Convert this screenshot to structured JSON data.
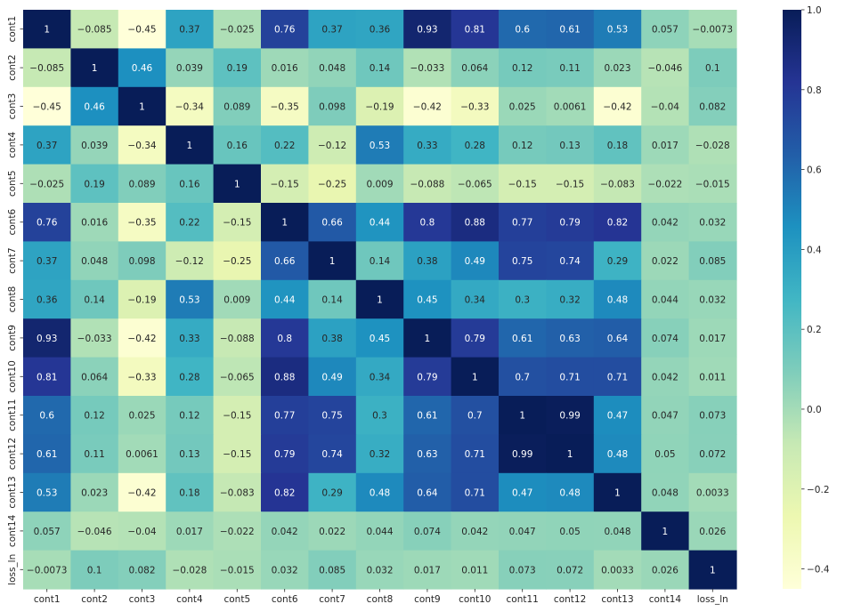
{
  "chart_data": {
    "type": "heatmap",
    "title": "",
    "xlabel": "",
    "ylabel": "",
    "colormap": "YlGnBu",
    "colormap_stops": [
      "#ffffd9",
      "#edf8b1",
      "#c7e9b4",
      "#7fcdbb",
      "#41b6c4",
      "#1d91c0",
      "#225ea8",
      "#253494",
      "#081d58"
    ],
    "vmin": -0.45,
    "vmax": 1.0,
    "columns": [
      "cont1",
      "cont2",
      "cont3",
      "cont4",
      "cont5",
      "cont6",
      "cont7",
      "cont8",
      "cont9",
      "cont10",
      "cont11",
      "cont12",
      "cont13",
      "cont14",
      "loss_ln"
    ],
    "rows": [
      "cont1",
      "cont2",
      "cont3",
      "cont4",
      "cont5",
      "cont6",
      "cont7",
      "cont8",
      "cont9",
      "cont10",
      "cont11",
      "cont12",
      "cont13",
      "cont14",
      "loss_ln"
    ],
    "values": [
      [
        1,
        -0.085,
        -0.45,
        0.37,
        -0.025,
        0.76,
        0.37,
        0.36,
        0.93,
        0.81,
        0.6,
        0.61,
        0.53,
        0.057,
        -0.0073
      ],
      [
        -0.085,
        1,
        0.46,
        0.039,
        0.19,
        0.016,
        0.048,
        0.14,
        -0.033,
        0.064,
        0.12,
        0.11,
        0.023,
        -0.046,
        0.1
      ],
      [
        -0.45,
        0.46,
        1,
        -0.34,
        0.089,
        -0.35,
        0.098,
        -0.19,
        -0.42,
        -0.33,
        0.025,
        0.0061,
        -0.42,
        -0.04,
        0.082
      ],
      [
        0.37,
        0.039,
        -0.34,
        1,
        0.16,
        0.22,
        -0.12,
        0.53,
        0.33,
        0.28,
        0.12,
        0.13,
        0.18,
        0.017,
        -0.028
      ],
      [
        -0.025,
        0.19,
        0.089,
        0.16,
        1,
        -0.15,
        -0.25,
        0.009,
        -0.088,
        -0.065,
        -0.15,
        -0.15,
        -0.083,
        -0.022,
        -0.015
      ],
      [
        0.76,
        0.016,
        -0.35,
        0.22,
        -0.15,
        1,
        0.66,
        0.44,
        0.8,
        0.88,
        0.77,
        0.79,
        0.82,
        0.042,
        0.032
      ],
      [
        0.37,
        0.048,
        0.098,
        -0.12,
        -0.25,
        0.66,
        1,
        0.14,
        0.38,
        0.49,
        0.75,
        0.74,
        0.29,
        0.022,
        0.085
      ],
      [
        0.36,
        0.14,
        -0.19,
        0.53,
        0.009,
        0.44,
        0.14,
        1,
        0.45,
        0.34,
        0.3,
        0.32,
        0.48,
        0.044,
        0.032
      ],
      [
        0.93,
        -0.033,
        -0.42,
        0.33,
        -0.088,
        0.8,
        0.38,
        0.45,
        1,
        0.79,
        0.61,
        0.63,
        0.64,
        0.074,
        0.017
      ],
      [
        0.81,
        0.064,
        -0.33,
        0.28,
        -0.065,
        0.88,
        0.49,
        0.34,
        0.79,
        1,
        0.7,
        0.71,
        0.71,
        0.042,
        0.011
      ],
      [
        0.6,
        0.12,
        0.025,
        0.12,
        -0.15,
        0.77,
        0.75,
        0.3,
        0.61,
        0.7,
        1,
        0.99,
        0.47,
        0.047,
        0.073
      ],
      [
        0.61,
        0.11,
        0.0061,
        0.13,
        -0.15,
        0.79,
        0.74,
        0.32,
        0.63,
        0.71,
        0.99,
        1,
        0.48,
        0.05,
        0.072
      ],
      [
        0.53,
        0.023,
        -0.42,
        0.18,
        -0.083,
        0.82,
        0.29,
        0.48,
        0.64,
        0.71,
        0.47,
        0.48,
        1,
        0.048,
        0.0033
      ],
      [
        0.057,
        -0.046,
        -0.04,
        0.017,
        -0.022,
        0.042,
        0.022,
        0.044,
        0.074,
        0.042,
        0.047,
        0.05,
        0.048,
        1,
        0.026
      ],
      [
        -0.0073,
        0.1,
        0.082,
        -0.028,
        -0.015,
        0.032,
        0.085,
        0.032,
        0.017,
        0.011,
        0.073,
        0.072,
        0.0033,
        0.026,
        1
      ]
    ],
    "colorbar_ticks": [
      -0.4,
      -0.2,
      0.0,
      0.2,
      0.4,
      0.6,
      0.8,
      1.0
    ],
    "colorbar_tick_labels": [
      "−0.4",
      "−0.2",
      "0.0",
      "0.2",
      "0.4",
      "0.6",
      "0.8",
      "1.0"
    ]
  }
}
